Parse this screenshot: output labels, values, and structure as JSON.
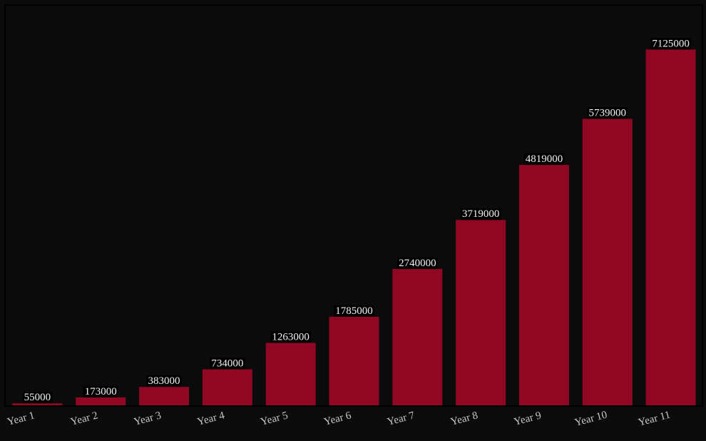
{
  "chart_data": {
    "type": "bar",
    "categories": [
      "Year 1",
      "Year 2",
      "Year 3",
      "Year 4",
      "Year 5",
      "Year 6",
      "Year 7",
      "Year 8",
      "Year 9",
      "Year 10",
      "Year 11"
    ],
    "values": [
      55000,
      173000,
      383000,
      734000,
      1263000,
      1785000,
      2740000,
      3719000,
      4819000,
      5739000,
      7125000
    ],
    "color": "#8f0722",
    "ylim": [
      0,
      8000000
    ]
  }
}
